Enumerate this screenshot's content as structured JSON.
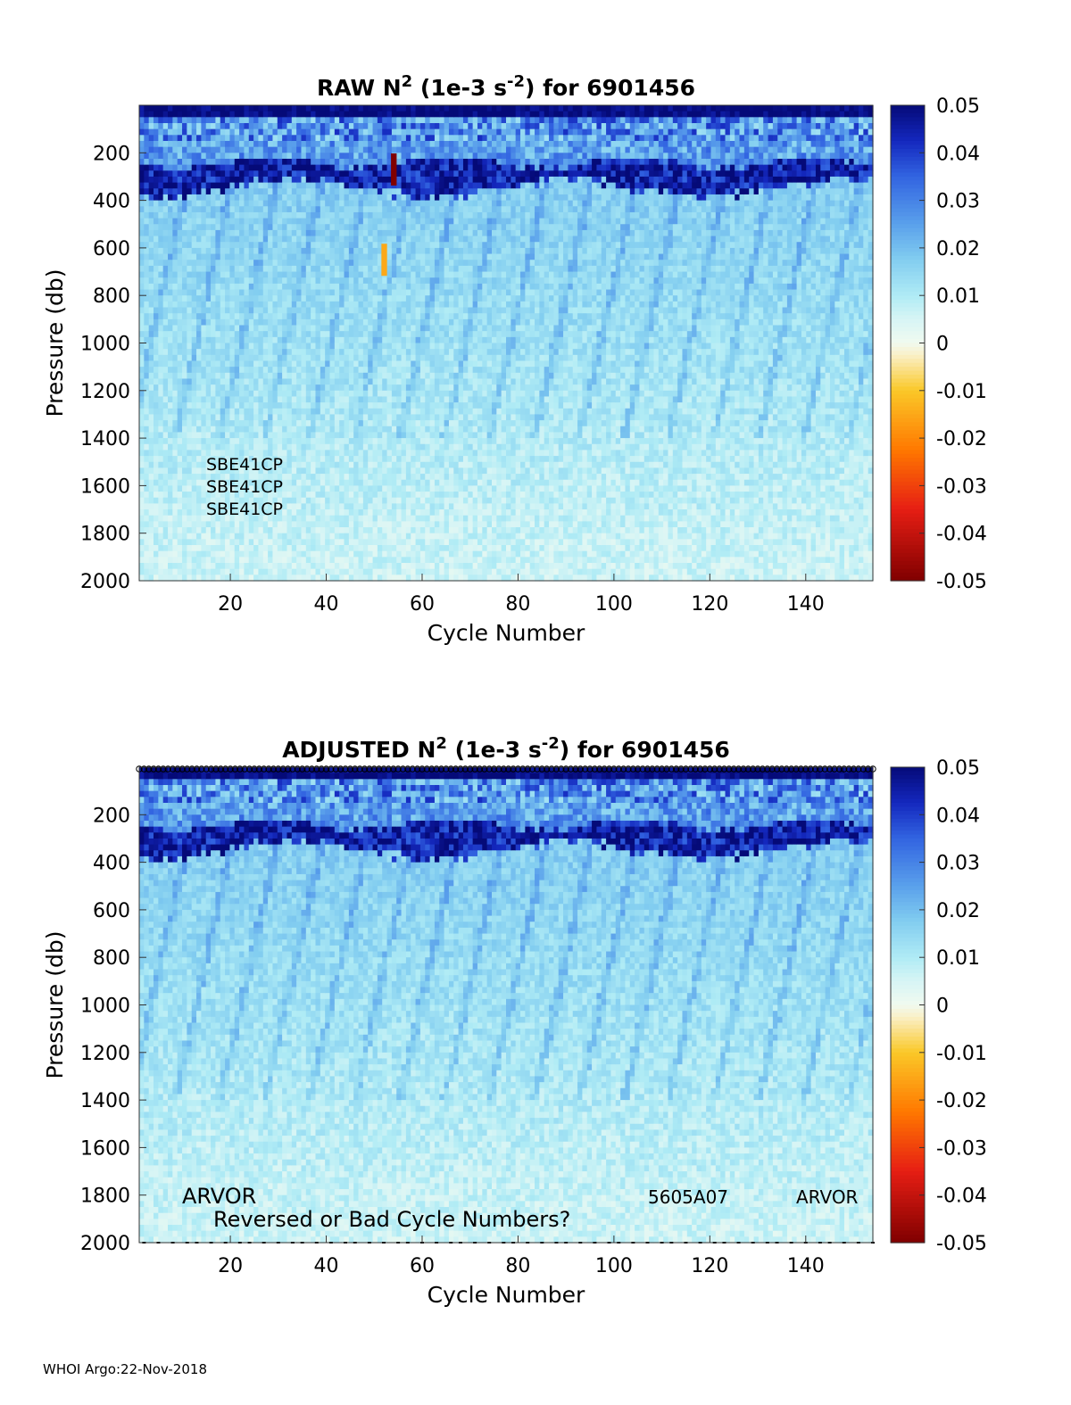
{
  "footer": "WHOI Argo:22-Nov-2018",
  "chart_data": [
    {
      "type": "heatmap",
      "title": {
        "prefix": "RAW N",
        "sup1": "2",
        "middle": " (1e-3 s",
        "sup2": "-2",
        "suffix": ") for 6901456"
      },
      "xlabel": "Cycle Number",
      "ylabel": "Pressure (db)",
      "xlim": [
        1,
        154
      ],
      "ylim": [
        0,
        2000
      ],
      "y_reversed": true,
      "xticks": [
        20,
        40,
        60,
        80,
        100,
        120,
        140
      ],
      "yticks": [
        200,
        400,
        600,
        800,
        1000,
        1200,
        1400,
        1600,
        1800,
        2000
      ],
      "colorbar": {
        "colormap": "blue-cyan-white-yellow-red",
        "clim": [
          -0.05,
          0.05
        ],
        "ticks": [
          "0.05",
          "0.04",
          "0.03",
          "0.02",
          "0.01",
          "0",
          "-0.01",
          "-0.02",
          "-0.03",
          "-0.04",
          "-0.05"
        ]
      },
      "field_description_levels": [
        {
          "pressure": 30,
          "value": 0.05
        },
        {
          "pressure": 150,
          "value": 0.02
        },
        {
          "pressure": 300,
          "value": 0.045
        },
        {
          "pressure": 500,
          "value": 0.015
        },
        {
          "pressure": 1000,
          "value": 0.008
        },
        {
          "pressure": 1500,
          "value": 0.006
        },
        {
          "pressure": 2000,
          "value": 0.003
        }
      ],
      "outliers": [
        {
          "cycle": 54,
          "pressure": 270,
          "value": -0.05
        },
        {
          "cycle": 52,
          "pressure": 650,
          "value": -0.015
        }
      ],
      "annotations": [
        "SBE41CP",
        "SBE41CP",
        "SBE41CP"
      ],
      "has_markers": false
    },
    {
      "type": "heatmap",
      "title": {
        "prefix": "ADJUSTED N",
        "sup1": "2",
        "middle": " (1e-3 s",
        "sup2": "-2",
        "suffix": ") for 6901456"
      },
      "xlabel": "Cycle Number",
      "ylabel": "Pressure (db)",
      "xlim": [
        1,
        154
      ],
      "ylim": [
        0,
        2000
      ],
      "y_reversed": true,
      "xticks": [
        20,
        40,
        60,
        80,
        100,
        120,
        140
      ],
      "yticks": [
        200,
        400,
        600,
        800,
        1000,
        1200,
        1400,
        1600,
        1800,
        2000
      ],
      "colorbar": {
        "colormap": "blue-cyan-white-yellow-red",
        "clim": [
          -0.05,
          0.05
        ],
        "ticks": [
          "0.05",
          "0.04",
          "0.03",
          "0.02",
          "0.01",
          "0",
          "-0.01",
          "-0.02",
          "-0.03",
          "-0.04",
          "-0.05"
        ]
      },
      "field_description_levels": [
        {
          "pressure": 30,
          "value": 0.05
        },
        {
          "pressure": 150,
          "value": 0.02
        },
        {
          "pressure": 300,
          "value": 0.045
        },
        {
          "pressure": 500,
          "value": 0.015
        },
        {
          "pressure": 1000,
          "value": 0.008
        },
        {
          "pressure": 1500,
          "value": 0.006
        },
        {
          "pressure": 2000,
          "value": 0.003
        }
      ],
      "outliers": [],
      "annotations": [
        "ARVOR",
        "Reversed or Bad Cycle Numbers?",
        "5605A07",
        "ARVOR"
      ],
      "has_markers": true
    }
  ]
}
